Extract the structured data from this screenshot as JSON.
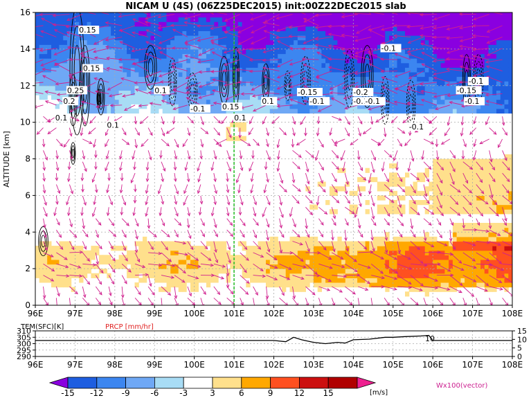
{
  "chart_data": [
    {
      "type": "heatmap",
      "title": "NICAM U (4S) (06Z25DEC2015) init:00Z22DEC2015 slab",
      "xlabel": "",
      "ylabel": "ALTITUDE [km]",
      "xlim": [
        96,
        108
      ],
      "ylim": [
        0,
        16
      ],
      "x_ticks": [
        96,
        97,
        98,
        99,
        100,
        101,
        102,
        103,
        104,
        105,
        106,
        107,
        108
      ],
      "x_tick_labels": [
        "96E",
        "97E",
        "98E",
        "99E",
        "100E",
        "101E",
        "102E",
        "103E",
        "104E",
        "105E",
        "106E",
        "107E",
        "108E"
      ],
      "y_ticks": [
        0,
        2,
        4,
        6,
        8,
        10,
        12,
        14,
        16
      ],
      "grid": true,
      "marker_line_lon": 101,
      "marker_line_color": "#22bb22",
      "contour_labels": [
        {
          "text": "0.15",
          "x": 97.1,
          "y": 14.9
        },
        {
          "text": "0.15",
          "x": 97.2,
          "y": 12.8
        },
        {
          "text": "0.25",
          "x": 96.8,
          "y": 11.6
        },
        {
          "text": "0.2",
          "x": 96.7,
          "y": 11.0
        },
        {
          "text": "0.1",
          "x": 96.5,
          "y": 10.1
        },
        {
          "text": "0.1",
          "x": 97.8,
          "y": 9.7
        },
        {
          "text": "0.1",
          "x": 99.0,
          "y": 11.6
        },
        {
          "text": "-0.1",
          "x": 99.9,
          "y": 10.6
        },
        {
          "text": "0.15",
          "x": 100.7,
          "y": 10.7
        },
        {
          "text": "0.1",
          "x": 101.0,
          "y": 10.1
        },
        {
          "text": "0.1",
          "x": 101.7,
          "y": 11.0
        },
        {
          "text": "-0.15",
          "x": 102.6,
          "y": 11.5
        },
        {
          "text": "-0.1",
          "x": 102.9,
          "y": 11.0
        },
        {
          "text": "-0.2",
          "x": 104.0,
          "y": 11.5
        },
        {
          "text": "-0.15",
          "x": 104.0,
          "y": 11.0
        },
        {
          "text": "-0.1",
          "x": 104.3,
          "y": 11.0
        },
        {
          "text": "-0.1",
          "x": 104.7,
          "y": 13.9
        },
        {
          "text": "-0.1",
          "x": 105.4,
          "y": 9.6
        },
        {
          "text": "-0.1",
          "x": 106.9,
          "y": 12.1
        },
        {
          "text": "-0.15",
          "x": 106.6,
          "y": 11.6
        },
        {
          "text": "-0.1",
          "x": 106.8,
          "y": 11.0
        }
      ],
      "colorbar": {
        "levels": [
          -15,
          -12,
          -9,
          -6,
          -3,
          3,
          6,
          9,
          12,
          15
        ],
        "colors": [
          "#8a00e0",
          "#1e5ee0",
          "#3c86f0",
          "#6fa8f5",
          "#a8dcf5",
          "#ffffff",
          "#ffe08c",
          "#ffa800",
          "#ff5020",
          "#cc1010",
          "#b00000",
          "#ee2090"
        ],
        "unit": "[m/s]",
        "vector_label": "Wx100(vector)"
      }
    },
    {
      "type": "line",
      "series": [
        {
          "name": "TEM(SFC)[K]",
          "x": [
            96,
            97,
            98,
            99,
            100,
            101,
            102,
            102.3,
            102.5,
            102.7,
            103,
            103.3,
            103.6,
            103.8,
            104,
            104.4,
            104.8,
            105,
            105.3,
            105.7,
            105.9,
            106,
            106.3,
            107,
            108
          ],
          "values": [
            302.5,
            302.5,
            302.5,
            302.5,
            302.5,
            302.5,
            302.5,
            301.5,
            305,
            303,
            301,
            300,
            301,
            300.5,
            303,
            303.5,
            305,
            305,
            305.5,
            306,
            306.5,
            302.5,
            302.5,
            302.5,
            302.5
          ],
          "color": "#000000"
        },
        {
          "name": "PRCP [mm/hr]",
          "x": [
            96,
            108
          ],
          "values": [
            0,
            0
          ],
          "color": "#ee2020"
        }
      ],
      "xlim": [
        96,
        108
      ],
      "ylim_left": [
        290,
        310
      ],
      "ylim_right": [
        0,
        15
      ],
      "y_ticks_left": [
        290,
        295,
        300,
        305,
        310
      ],
      "y_ticks_right": [
        0,
        5,
        10,
        15
      ],
      "x_tick_labels": [
        "96E",
        "97E",
        "98E",
        "99E",
        "100E",
        "101E",
        "102E",
        "103E",
        "104E",
        "105E",
        "106E",
        "107E",
        "108E"
      ],
      "labels": [
        "TEM(SFC)[K]",
        "PRCP [mm/hr]"
      ],
      "annotation": "10"
    }
  ]
}
